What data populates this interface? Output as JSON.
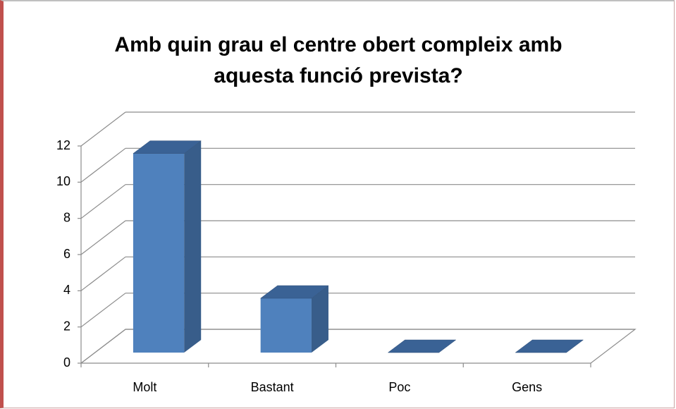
{
  "chart_data": {
    "type": "bar3d",
    "title": "Amb quin grau el centre obert compleix amb aquesta funció prevista?",
    "categories": [
      "Molt",
      "Bastant",
      "Poc",
      "Gens"
    ],
    "values": [
      11,
      3,
      0,
      0
    ],
    "color": "#4f81bd",
    "ylim": [
      0,
      12
    ],
    "yticks": [
      0,
      2,
      4,
      6,
      8,
      10,
      12
    ],
    "grid": true
  }
}
